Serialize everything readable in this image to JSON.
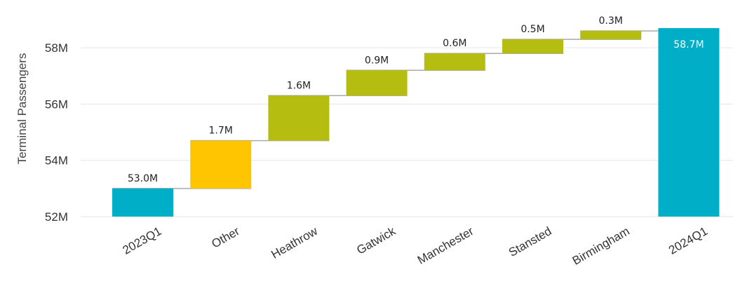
{
  "chart_data": {
    "type": "waterfall",
    "ylabel": "Terminal Passengers",
    "ylim": [
      52,
      59.2
    ],
    "yticks": [
      52,
      54,
      56,
      58
    ],
    "ytick_labels": [
      "52M",
      "54M",
      "56M",
      "58M"
    ],
    "grid": true,
    "categories": [
      "2023Q1",
      "Other",
      "Heathrow",
      "Gatwick",
      "Manchester",
      "Stansted",
      "Birmingham",
      "2024Q1"
    ],
    "kinds": [
      "total",
      "delta",
      "delta",
      "delta",
      "delta",
      "delta",
      "delta",
      "total"
    ],
    "values": [
      53.0,
      1.7,
      1.6,
      0.9,
      0.6,
      0.5,
      0.3,
      58.7
    ],
    "data_labels": [
      "53.0M",
      "1.7M",
      "1.6M",
      "0.9M",
      "0.6M",
      "0.5M",
      "0.3M",
      "58.7M"
    ],
    "colors": [
      "#00AEC7",
      "#FFC600",
      "#B5BD10",
      "#B5BD10",
      "#B5BD10",
      "#B5BD10",
      "#B5BD10",
      "#00AEC7"
    ],
    "connector_color": "#AAAAAA",
    "grid_color": "#E6E6E6"
  }
}
